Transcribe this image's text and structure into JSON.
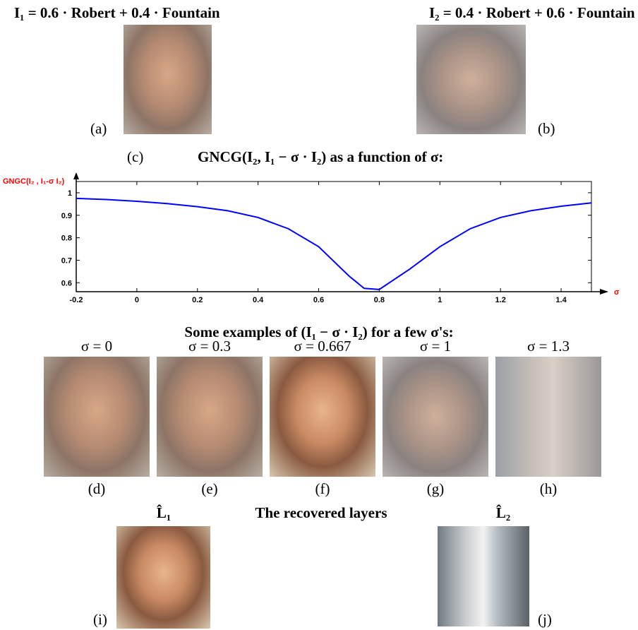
{
  "top": {
    "formula_1": "I₁ = 0.6 · Robert + 0.4 · Fountain",
    "formula_2": "I₂ = 0.4 · Robert + 0.6 · Fountain",
    "label_a": "(a)",
    "label_b": "(b)"
  },
  "plot_heading": {
    "label": "(c)",
    "title": "GNCG(I₂, I₁ − σ · I₂) as a function of σ:"
  },
  "chart_data": {
    "type": "line",
    "y_label": "GNGC(I₂ , I₁-σ I₂)",
    "x_label": "σ",
    "x": [
      -0.2,
      -0.1,
      0,
      0.1,
      0.2,
      0.3,
      0.4,
      0.5,
      0.6,
      0.7,
      0.75,
      0.8,
      0.9,
      1.0,
      1.1,
      1.2,
      1.3,
      1.4,
      1.5
    ],
    "series": [
      {
        "color": "#0000ff",
        "values": [
          0.975,
          0.97,
          0.962,
          0.952,
          0.938,
          0.92,
          0.89,
          0.84,
          0.76,
          0.63,
          0.575,
          0.57,
          0.66,
          0.76,
          0.84,
          0.89,
          0.92,
          0.94,
          0.955
        ]
      }
    ],
    "xlim": [
      -0.2,
      1.5
    ],
    "ylim": [
      0.56,
      1.05
    ],
    "xticks": [
      -0.2,
      0,
      0.2,
      0.4,
      0.6,
      0.8,
      1,
      1.2,
      1.4
    ],
    "yticks": [
      0.6,
      0.7,
      0.8,
      0.9,
      1
    ],
    "grid": false,
    "label_color": "#ff0000"
  },
  "examples": {
    "title": "Some examples of (I₁ − σ · I₂) for a few σ's:",
    "items": [
      {
        "sigma": "σ = 0",
        "label": "(d)"
      },
      {
        "sigma": "σ = 0.3",
        "label": "(e)"
      },
      {
        "sigma": "σ = 0.667",
        "label": "(f)"
      },
      {
        "sigma": "σ = 1",
        "label": "(g)"
      },
      {
        "sigma": "σ = 1.3",
        "label": "(h)"
      }
    ]
  },
  "recovered": {
    "title": "The recovered layers",
    "layer_1": "L̂₁",
    "layer_2": "L̂₂",
    "label_i": "(i)",
    "label_j": "(j)"
  }
}
